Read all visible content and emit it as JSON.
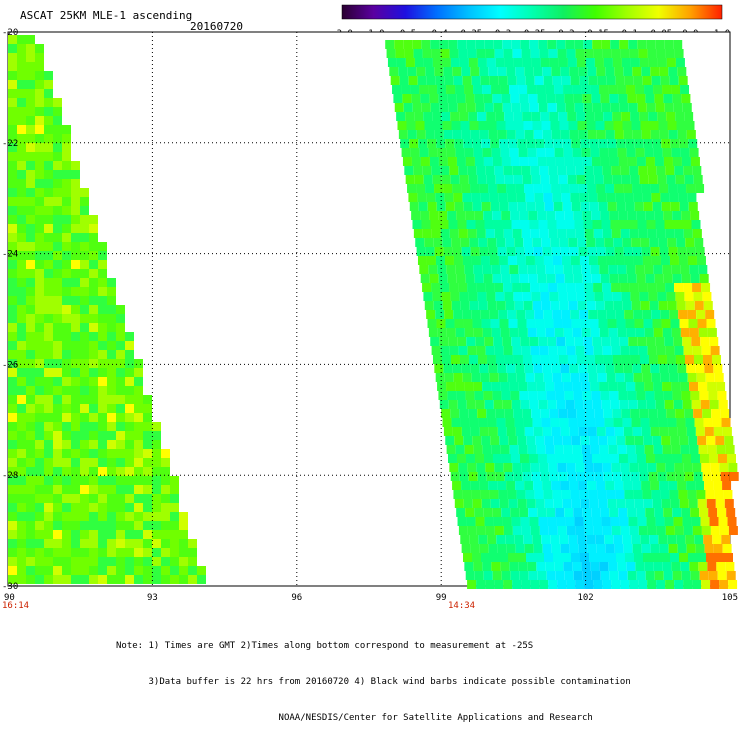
{
  "header": {
    "title": "ASCAT 25KM MLE-1 ascending",
    "date": "20160720"
  },
  "colorbar": {
    "labels": [
      "-3.0",
      "-1.0",
      "-0.5",
      "-0.4",
      "-0.35",
      "-0.3",
      "-0.25",
      "-0.2",
      "-0.15",
      "-0.1",
      "-0.05",
      "0.0",
      "1.0"
    ],
    "colors": [
      "#2a0030",
      "#5a00a0",
      "#1e10e0",
      "#0070ff",
      "#00c0ff",
      "#00ffff",
      "#00ffb0",
      "#10f060",
      "#40ff00",
      "#a0ff00",
      "#f0ff00",
      "#ffa000",
      "#ff2000"
    ]
  },
  "axes": {
    "x_ticks": [
      "90",
      "93",
      "96",
      "99",
      "102",
      "105"
    ],
    "y_ticks": [
      "-20",
      "-22",
      "-24",
      "-26",
      "-28",
      "-30"
    ]
  },
  "swaths": {
    "left_time": "16:14",
    "right_time": "14:34"
  },
  "notes": [
    "Note: 1) Times are GMT 2)Times along bottom correspond to measurement at -25S",
    "      3)Data buffer is 22 hrs from 20160720 4) Black wind barbs indicate possible contamination",
    "                              NOAA/NESDIS/Center for Satellite Applications and Research"
  ]
}
